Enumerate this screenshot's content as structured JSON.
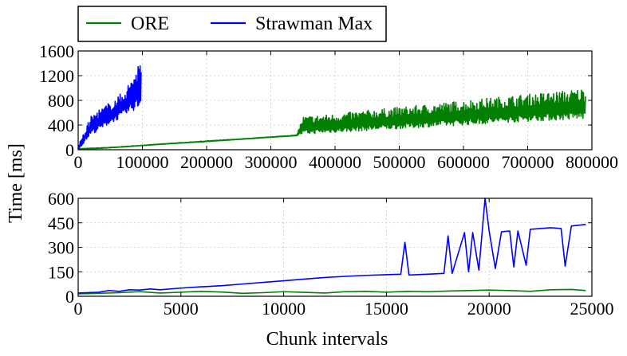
{
  "legend": {
    "placement": "top-left, outside above plots",
    "entries": [
      {
        "label": "ORE",
        "color": "#007f00"
      },
      {
        "label": "Strawman Max",
        "color": "#0000ff"
      }
    ]
  },
  "shared_ylabel": "Time [ms]",
  "chart_data": [
    {
      "type": "line",
      "title": "",
      "xlabel": "",
      "ylabel": "Time [ms]",
      "xlim": [
        0,
        800000
      ],
      "ylim": [
        0,
        1600
      ],
      "xticks": [
        0,
        100000,
        200000,
        300000,
        400000,
        500000,
        600000,
        700000,
        800000
      ],
      "xtick_labels": [
        "0",
        "100000",
        "200000",
        "300000",
        "400000",
        "500000",
        "600000",
        "700000",
        "800000"
      ],
      "yticks": [
        0,
        400,
        800,
        1200,
        1600
      ],
      "ytick_labels": [
        "0",
        "400",
        "800",
        "1200",
        "1600"
      ],
      "grid": true,
      "series": [
        {
          "name": "ORE",
          "color": "#007f00",
          "style": "dense oscillating band",
          "x": [
            0,
            50000,
            100000,
            150000,
            200000,
            250000,
            300000,
            340000,
            350000,
            400000,
            450000,
            500000,
            550000,
            600000,
            650000,
            700000,
            750000,
            790000
          ],
          "y_low": [
            0,
            30,
            65,
            100,
            130,
            165,
            200,
            225,
            250,
            280,
            310,
            340,
            370,
            400,
            430,
            460,
            480,
            500
          ],
          "y_high": [
            20,
            40,
            75,
            110,
            145,
            175,
            210,
            240,
            540,
            580,
            640,
            690,
            740,
            800,
            850,
            900,
            950,
            1000
          ]
        },
        {
          "name": "Strawman Max",
          "color": "#0000ff",
          "style": "dense oscillating band",
          "x": [
            0,
            10000,
            20000,
            30000,
            40000,
            50000,
            60000,
            70000,
            80000,
            90000,
            98000
          ],
          "y_low": [
            0,
            120,
            250,
            300,
            360,
            430,
            480,
            540,
            600,
            650,
            700
          ],
          "y_high": [
            60,
            300,
            550,
            640,
            700,
            780,
            850,
            950,
            1100,
            1350,
            1500
          ]
        }
      ]
    },
    {
      "type": "line",
      "title": "",
      "xlabel": "Chunk intervals",
      "ylabel": "Time [ms]",
      "xlim": [
        0,
        25000
      ],
      "ylim": [
        0,
        600
      ],
      "xticks": [
        0,
        5000,
        10000,
        15000,
        20000,
        25000
      ],
      "xtick_labels": [
        "0",
        "5000",
        "10000",
        "15000",
        "20000",
        "25000"
      ],
      "yticks": [
        0,
        150,
        300,
        450,
        600
      ],
      "ytick_labels": [
        "0",
        "150",
        "300",
        "450",
        "600"
      ],
      "grid": true,
      "series": [
        {
          "name": "ORE",
          "color": "#007f00",
          "x": [
            0,
            1000,
            2000,
            3000,
            4000,
            5000,
            6000,
            7000,
            8000,
            9000,
            10000,
            11000,
            12000,
            13000,
            14000,
            15000,
            16000,
            17000,
            18000,
            19000,
            20000,
            21000,
            22000,
            23000,
            24000,
            24700
          ],
          "y": [
            15,
            18,
            22,
            28,
            20,
            25,
            30,
            26,
            18,
            22,
            28,
            24,
            20,
            28,
            30,
            25,
            30,
            28,
            32,
            35,
            38,
            35,
            30,
            40,
            42,
            35
          ]
        },
        {
          "name": "Strawman Max",
          "color": "#0000ff",
          "x": [
            0,
            1000,
            1500,
            2000,
            2500,
            3000,
            3500,
            4000,
            5000,
            6000,
            7000,
            8000,
            9000,
            10000,
            11000,
            12000,
            13000,
            14000,
            15000,
            15700,
            15900,
            16100,
            17000,
            17800,
            18000,
            18200,
            18800,
            19000,
            19200,
            19500,
            19800,
            20000,
            20300,
            20600,
            21000,
            21200,
            21400,
            21800,
            22000,
            23000,
            23500,
            23700,
            24000,
            24700
          ],
          "y": [
            20,
            25,
            35,
            30,
            40,
            38,
            45,
            40,
            50,
            58,
            65,
            75,
            85,
            95,
            105,
            115,
            122,
            128,
            132,
            135,
            330,
            130,
            135,
            140,
            370,
            140,
            390,
            150,
            390,
            160,
            600,
            400,
            170,
            395,
            400,
            180,
            400,
            190,
            410,
            420,
            415,
            185,
            430,
            440
          ]
        }
      ]
    }
  ]
}
